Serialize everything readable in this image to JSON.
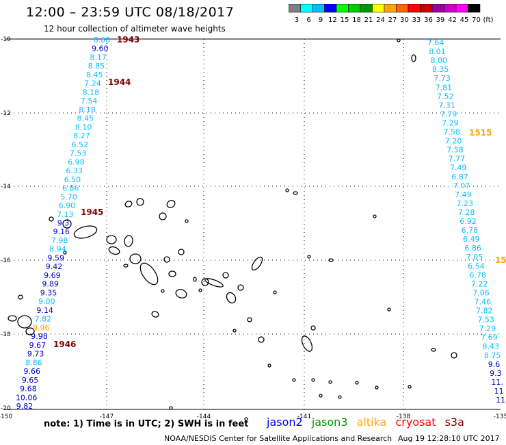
{
  "title": "12:00 – 23:59 UTC 08/18/2017",
  "subtitle": "12 hour collection of altimeter wave heights",
  "scale": {
    "colors": [
      "#808080",
      "#00ffff",
      "#00bfff",
      "#0000ff",
      "#00ff00",
      "#00cc00",
      "#009900",
      "#ffff00",
      "#ffa500",
      "#ff6600",
      "#ff0000",
      "#cc0000",
      "#990099",
      "#cc00cc",
      "#ff00ff",
      "#000000"
    ],
    "labels": [
      "3",
      "6",
      "9",
      "12",
      "15",
      "18",
      "21",
      "24",
      "27",
      "30",
      "33",
      "36",
      "39",
      "42",
      "45",
      "70",
      "(ft)"
    ]
  },
  "map": {
    "lat_labels": [
      "-10",
      "-12",
      "-14",
      "-16",
      "-18",
      "-20"
    ],
    "lon_labels": [
      "-150",
      "-147",
      "-144",
      "-141",
      "-138",
      "-135"
    ]
  },
  "tracks": [
    {
      "id": "left",
      "time_labels": [
        {
          "text": "1943",
          "color": "#800000"
        },
        {
          "text": "1944",
          "color": "#800000"
        },
        {
          "text": "1945",
          "color": "#800000"
        },
        {
          "text": "1946",
          "color": "#800000"
        }
      ],
      "values": [
        {
          "v": "8.68",
          "c": "#00bfff"
        },
        {
          "v": "9.60",
          "c": "#0000cd"
        },
        {
          "v": "8.17",
          "c": "#00bfff"
        },
        {
          "v": "8.85",
          "c": "#00bfff"
        },
        {
          "v": "8.45",
          "c": "#00bfff"
        },
        {
          "v": "7.24",
          "c": "#00bfff"
        },
        {
          "v": "8.18",
          "c": "#00bfff"
        },
        {
          "v": "7.54",
          "c": "#00bfff"
        },
        {
          "v": "8.18",
          "c": "#00bfff"
        },
        {
          "v": "8.45",
          "c": "#00bfff"
        },
        {
          "v": "8.10",
          "c": "#00bfff"
        },
        {
          "v": "8.27",
          "c": "#00bfff"
        },
        {
          "v": "6.52",
          "c": "#00bfff"
        },
        {
          "v": "7.53",
          "c": "#00bfff"
        },
        {
          "v": "6.98",
          "c": "#00bfff"
        },
        {
          "v": "6.33",
          "c": "#00bfff"
        },
        {
          "v": "6.50",
          "c": "#00bfff"
        },
        {
          "v": "6.86",
          "c": "#00bfff"
        },
        {
          "v": "5.70",
          "c": "#00bfff"
        },
        {
          "v": "6.90",
          "c": "#00bfff"
        },
        {
          "v": "7.13",
          "c": "#00bfff"
        },
        {
          "v": "9.3",
          "c": "#0000cd"
        },
        {
          "v": "9.16",
          "c": "#0000cd"
        },
        {
          "v": "7.98",
          "c": "#00bfff"
        },
        {
          "v": "8.94",
          "c": "#00bfff"
        },
        {
          "v": "9.59",
          "c": "#0000cd"
        },
        {
          "v": "9.42",
          "c": "#0000cd"
        },
        {
          "v": "9.69",
          "c": "#0000cd"
        },
        {
          "v": "9.89",
          "c": "#0000cd"
        },
        {
          "v": "9.35",
          "c": "#0000cd"
        },
        {
          "v": "9.00",
          "c": "#00bfff"
        },
        {
          "v": "9.14",
          "c": "#0000cd"
        },
        {
          "v": "7.82",
          "c": "#00bfff"
        },
        {
          "v": "9.96",
          "c": "#ffa500"
        },
        {
          "v": "9.98",
          "c": "#0000cd"
        },
        {
          "v": "9.67",
          "c": "#0000cd"
        },
        {
          "v": "9.73",
          "c": "#0000cd"
        },
        {
          "v": "8.86",
          "c": "#00bfff"
        },
        {
          "v": "9.66",
          "c": "#0000cd"
        },
        {
          "v": "9.65",
          "c": "#0000cd"
        },
        {
          "v": "9.68",
          "c": "#0000cd"
        },
        {
          "v": "10.06",
          "c": "#0000cd"
        },
        {
          "v": "9.82",
          "c": "#0000cd"
        }
      ]
    },
    {
      "id": "right",
      "time_labels": [
        {
          "text": "1515",
          "color": "#ffa500"
        },
        {
          "text": "15",
          "color": "#ffa500"
        }
      ],
      "values": [
        {
          "v": "7.64",
          "c": "#00bfff"
        },
        {
          "v": "8.01",
          "c": "#00bfff"
        },
        {
          "v": "8.00",
          "c": "#00bfff"
        },
        {
          "v": "8.35",
          "c": "#00bfff"
        },
        {
          "v": "7.73",
          "c": "#00bfff"
        },
        {
          "v": "7.81",
          "c": "#00bfff"
        },
        {
          "v": "7.52",
          "c": "#00bfff"
        },
        {
          "v": "7.31",
          "c": "#00bfff"
        },
        {
          "v": "7.79",
          "c": "#00bfff"
        },
        {
          "v": "7.29",
          "c": "#00bfff"
        },
        {
          "v": "7.58",
          "c": "#00bfff"
        },
        {
          "v": "7.20",
          "c": "#00bfff"
        },
        {
          "v": "7.58",
          "c": "#00bfff"
        },
        {
          "v": "7.77",
          "c": "#00bfff"
        },
        {
          "v": "7.49",
          "c": "#00bfff"
        },
        {
          "v": "6.87",
          "c": "#00bfff"
        },
        {
          "v": "7.07",
          "c": "#00bfff"
        },
        {
          "v": "7.49",
          "c": "#00bfff"
        },
        {
          "v": "7.23",
          "c": "#00bfff"
        },
        {
          "v": "7.28",
          "c": "#00bfff"
        },
        {
          "v": "6.92",
          "c": "#00bfff"
        },
        {
          "v": "6.78",
          "c": "#00bfff"
        },
        {
          "v": "6.49",
          "c": "#00bfff"
        },
        {
          "v": "6.86",
          "c": "#00bfff"
        },
        {
          "v": "7.05",
          "c": "#00bfff"
        },
        {
          "v": "6.54",
          "c": "#00bfff"
        },
        {
          "v": "6.78",
          "c": "#00bfff"
        },
        {
          "v": "7.22",
          "c": "#00bfff"
        },
        {
          "v": "7.06",
          "c": "#00bfff"
        },
        {
          "v": "7.46",
          "c": "#00bfff"
        },
        {
          "v": "7.82",
          "c": "#00bfff"
        },
        {
          "v": "7.53",
          "c": "#00bfff"
        },
        {
          "v": "7.29",
          "c": "#00bfff"
        },
        {
          "v": "7.69",
          "c": "#00bfff"
        },
        {
          "v": "8.43",
          "c": "#00bfff"
        },
        {
          "v": "8.75",
          "c": "#00bfff"
        },
        {
          "v": "9.6",
          "c": "#0000cd"
        },
        {
          "v": "9.3",
          "c": "#0000cd"
        },
        {
          "v": "11.",
          "c": "#0000cd"
        },
        {
          "v": "11",
          "c": "#0000cd"
        },
        {
          "v": "11",
          "c": "#0000cd"
        }
      ]
    }
  ],
  "footer": {
    "note": "note:  1) Time is in UTC;  2) SWH is in feet",
    "credit": "NOAA/NESDIS Center for Satellite Applications and Research",
    "timestamp": "Aug 19 12:28:10 UTC 2017",
    "legend": [
      {
        "name": "jason2",
        "color": "#0000ff"
      },
      {
        "name": "jason3",
        "color": "#009900"
      },
      {
        "name": "altika",
        "color": "#ffa500"
      },
      {
        "name": "cryosat",
        "color": "#ff0000"
      },
      {
        "name": "s3a",
        "color": "#800000"
      }
    ]
  }
}
